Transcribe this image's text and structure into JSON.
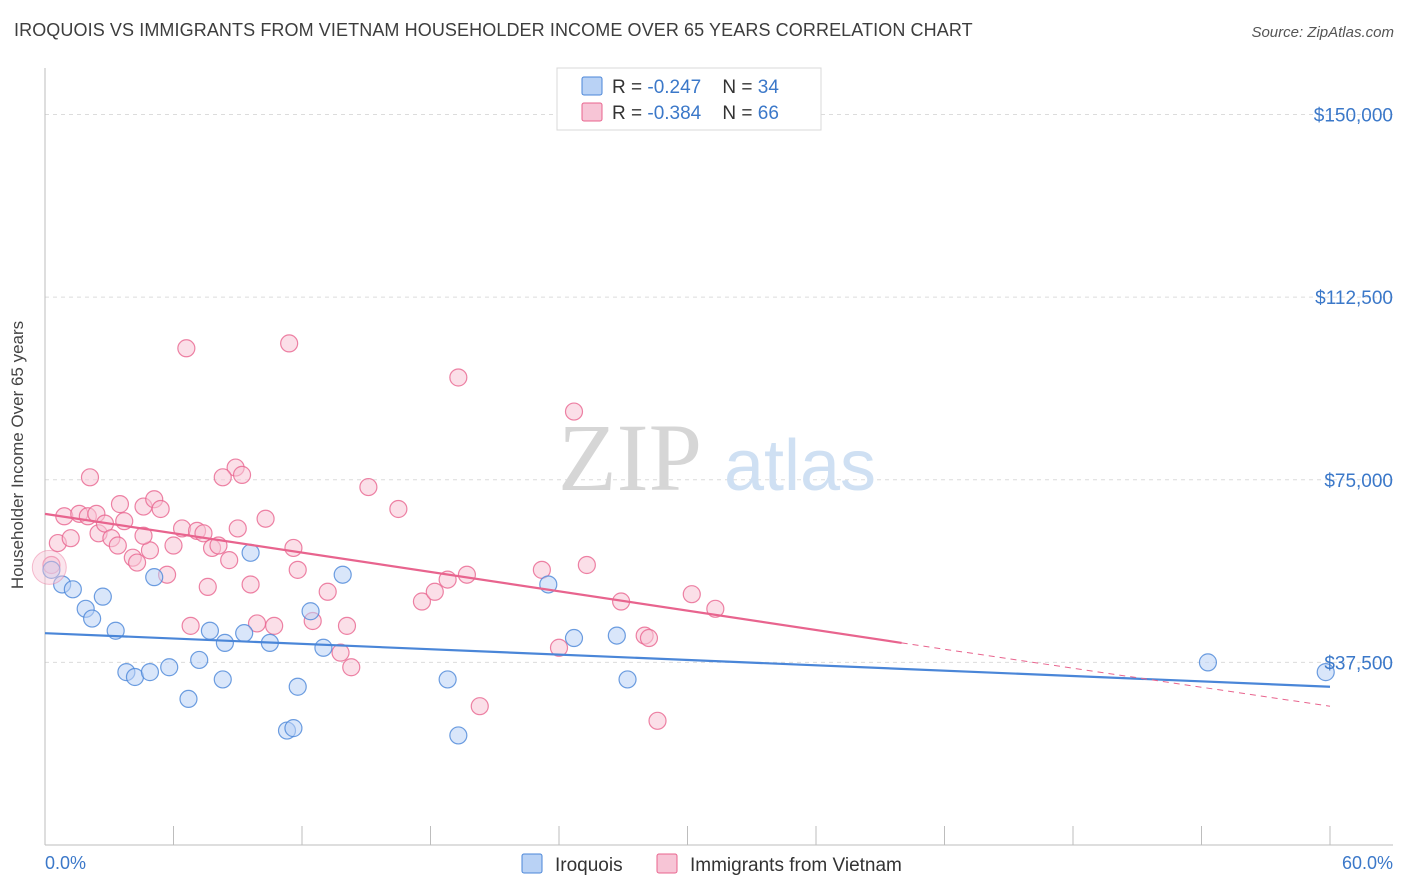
{
  "title": "IROQUOIS VS IMMIGRANTS FROM VIETNAM HOUSEHOLDER INCOME OVER 65 YEARS CORRELATION CHART",
  "source": "Source: ZipAtlas.com",
  "watermark": {
    "zip": "ZIP",
    "atlas": "atlas"
  },
  "colors": {
    "blue": "#4a86d8",
    "blue_fill": "#b9d2f5",
    "pink": "#e8648e",
    "pink_fill": "#f7c5d6",
    "axis_text": "#3b78c9"
  },
  "legend_top": [
    {
      "swatch": "blue",
      "r_label": "R = ",
      "r_value": "-0.247",
      "n_label": "N = ",
      "n_value": "34"
    },
    {
      "swatch": "pink",
      "r_label": "R = ",
      "r_value": "-0.384",
      "n_label": "N = ",
      "n_value": "66"
    }
  ],
  "chart_data": {
    "type": "scatter",
    "title": "IROQUOIS VS IMMIGRANTS FROM VIETNAM HOUSEHOLDER INCOME OVER 65 YEARS CORRELATION CHART",
    "xlabel": "",
    "ylabel": "Householder Income Over 65 years",
    "xlim": [
      0,
      60
    ],
    "ylim": [
      0,
      157500
    ],
    "x_tick_labels": [
      "0.0%",
      "60.0%"
    ],
    "y_ticks": [
      37500,
      75000,
      112500,
      150000
    ],
    "y_tick_labels": [
      "$37,500",
      "$75,000",
      "$112,500",
      "$150,000"
    ],
    "grid": true,
    "legend_position": "bottom",
    "series": [
      {
        "name": "Iroquois",
        "color": "blue",
        "points": [
          [
            0.3,
            56500
          ],
          [
            0.8,
            53500
          ],
          [
            1.3,
            52500
          ],
          [
            1.9,
            48500
          ],
          [
            2.2,
            46500
          ],
          [
            2.7,
            51000
          ],
          [
            3.3,
            44000
          ],
          [
            3.8,
            35500
          ],
          [
            4.2,
            34500
          ],
          [
            4.9,
            35500
          ],
          [
            5.1,
            55000
          ],
          [
            5.8,
            36500
          ],
          [
            6.7,
            30000
          ],
          [
            7.2,
            38000
          ],
          [
            7.7,
            44000
          ],
          [
            8.3,
            34000
          ],
          [
            8.4,
            41500
          ],
          [
            9.3,
            43500
          ],
          [
            9.6,
            60000
          ],
          [
            10.5,
            41500
          ],
          [
            11.3,
            23500
          ],
          [
            11.6,
            24000
          ],
          [
            11.8,
            32500
          ],
          [
            12.4,
            48000
          ],
          [
            13.0,
            40500
          ],
          [
            13.9,
            55500
          ],
          [
            18.8,
            34000
          ],
          [
            19.3,
            22500
          ],
          [
            23.5,
            53500
          ],
          [
            24.7,
            42500
          ],
          [
            26.7,
            43000
          ],
          [
            27.2,
            34000
          ],
          [
            54.3,
            37500
          ],
          [
            59.8,
            35500
          ]
        ],
        "trend": {
          "x": [
            0,
            60
          ],
          "y": [
            43500,
            32500
          ]
        }
      },
      {
        "name": "Immigrants from Vietnam",
        "color": "pink",
        "points": [
          [
            0.3,
            57500
          ],
          [
            0.6,
            62000
          ],
          [
            0.9,
            67500
          ],
          [
            1.2,
            63000
          ],
          [
            1.6,
            68000
          ],
          [
            2.0,
            67500
          ],
          [
            2.1,
            75500
          ],
          [
            2.4,
            68000
          ],
          [
            2.5,
            64000
          ],
          [
            2.8,
            66000
          ],
          [
            3.1,
            63000
          ],
          [
            3.4,
            61500
          ],
          [
            3.5,
            70000
          ],
          [
            3.7,
            66500
          ],
          [
            4.1,
            59000
          ],
          [
            4.3,
            58000
          ],
          [
            4.6,
            69500
          ],
          [
            4.9,
            60500
          ],
          [
            5.1,
            71000
          ],
          [
            5.4,
            69000
          ],
          [
            5.7,
            55500
          ],
          [
            6.0,
            61500
          ],
          [
            6.4,
            65000
          ],
          [
            6.6,
            102000
          ],
          [
            6.8,
            45000
          ],
          [
            7.1,
            64500
          ],
          [
            7.4,
            64000
          ],
          [
            7.6,
            53000
          ],
          [
            7.8,
            61000
          ],
          [
            8.1,
            61500
          ],
          [
            8.6,
            58500
          ],
          [
            8.9,
            77500
          ],
          [
            9.0,
            65000
          ],
          [
            9.2,
            76000
          ],
          [
            9.6,
            53500
          ],
          [
            9.9,
            45500
          ],
          [
            10.3,
            67000
          ],
          [
            10.7,
            45000
          ],
          [
            11.4,
            103000
          ],
          [
            11.6,
            61000
          ],
          [
            11.8,
            56500
          ],
          [
            12.5,
            46000
          ],
          [
            13.2,
            52000
          ],
          [
            13.8,
            39500
          ],
          [
            14.1,
            45000
          ],
          [
            14.3,
            36500
          ],
          [
            15.1,
            73500
          ],
          [
            16.5,
            69000
          ],
          [
            17.6,
            50000
          ],
          [
            18.2,
            52000
          ],
          [
            18.8,
            54500
          ],
          [
            19.3,
            96000
          ],
          [
            19.7,
            55500
          ],
          [
            20.3,
            28500
          ],
          [
            23.2,
            56500
          ],
          [
            24.0,
            40500
          ],
          [
            24.7,
            89000
          ],
          [
            25.3,
            57500
          ],
          [
            26.9,
            50000
          ],
          [
            28.0,
            43000
          ],
          [
            28.2,
            42500
          ],
          [
            28.6,
            25500
          ],
          [
            30.2,
            51500
          ],
          [
            31.3,
            48500
          ],
          [
            8.3,
            75500
          ],
          [
            4.6,
            63500
          ]
        ],
        "trend": {
          "x": [
            0,
            40
          ],
          "y": [
            68000,
            41500
          ]
        },
        "trend_extension": {
          "x": [
            40,
            60
          ],
          "y": [
            41500,
            28500
          ]
        }
      }
    ]
  },
  "legend_bottom": [
    {
      "swatch": "blue",
      "label": "Iroquois"
    },
    {
      "swatch": "pink",
      "label": "Immigrants from Vietnam"
    }
  ]
}
